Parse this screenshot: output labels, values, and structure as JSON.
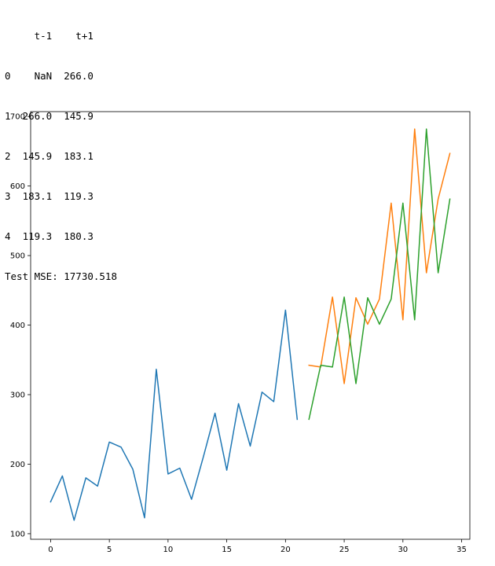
{
  "console": {
    "table_header": "     t-1    t+1",
    "table_rows": [
      "0    NaN  266.0",
      "1  266.0  145.9",
      "2  145.9  183.1",
      "3  183.1  119.3",
      "4  119.3  180.3"
    ],
    "mse_line": "Test MSE: 17730.518"
  },
  "chart_data": {
    "type": "line",
    "title": "",
    "xlabel": "",
    "ylabel": "",
    "xlim": [
      -1.7,
      35.7
    ],
    "ylim": [
      92,
      707
    ],
    "xticks": [
      0,
      5,
      10,
      15,
      20,
      25,
      30,
      35
    ],
    "yticks": [
      100,
      200,
      300,
      400,
      500,
      600,
      700
    ],
    "grid": false,
    "legend": "none",
    "series": [
      {
        "color": "#1f77b4",
        "x": [
          0,
          1,
          2,
          3,
          4,
          5,
          6,
          7,
          8,
          9,
          10,
          11,
          12,
          13,
          14,
          15,
          16,
          17,
          18,
          19,
          20,
          21
        ],
        "y": [
          145.9,
          183.1,
          119.3,
          180.3,
          168.5,
          231.8,
          224.5,
          192.8,
          122.9,
          336.5,
          185.9,
          194.3,
          149.5,
          210.1,
          273.3,
          191.4,
          287.0,
          226.0,
          303.6,
          289.9,
          421.6,
          264.5
        ]
      },
      {
        "color": "#ff7f0e",
        "x": [
          22,
          23,
          24,
          25,
          26,
          27,
          28,
          29,
          30,
          31,
          32,
          33,
          34
        ],
        "y": [
          342.3,
          339.7,
          440.4,
          315.9,
          439.3,
          401.3,
          437.4,
          575.5,
          407.6,
          682.0,
          475.3,
          581.3,
          646.9
        ]
      },
      {
        "color": "#2ca02c",
        "x": [
          22,
          23,
          24,
          25,
          26,
          27,
          28,
          29,
          30,
          31,
          32,
          33,
          34
        ],
        "y": [
          264.5,
          342.3,
          339.7,
          440.4,
          315.9,
          439.3,
          401.3,
          437.4,
          575.5,
          407.6,
          682.0,
          475.3,
          581.3
        ]
      }
    ]
  }
}
